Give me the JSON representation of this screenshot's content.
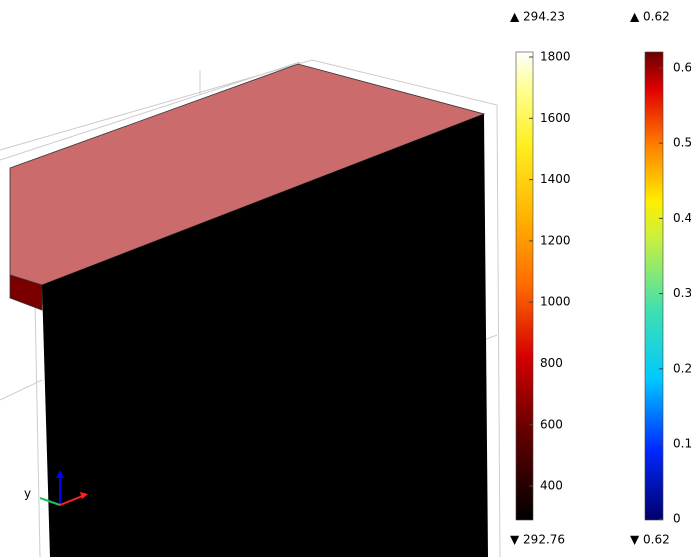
{
  "axis_label": "y",
  "legends": [
    {
      "max_label": "▲ 294.23",
      "ticks": [
        "1800",
        "1600",
        "1400",
        "1200",
        "1000",
        "800",
        "600",
        "400"
      ],
      "min_label": "▼ 292.76"
    },
    {
      "max_label": "▲ 0.62",
      "ticks": [
        "0.6",
        "0.5",
        "0.4",
        "0.3",
        "0.2",
        "0.1",
        "0"
      ],
      "min_label": "▼ 0.62"
    }
  ]
}
